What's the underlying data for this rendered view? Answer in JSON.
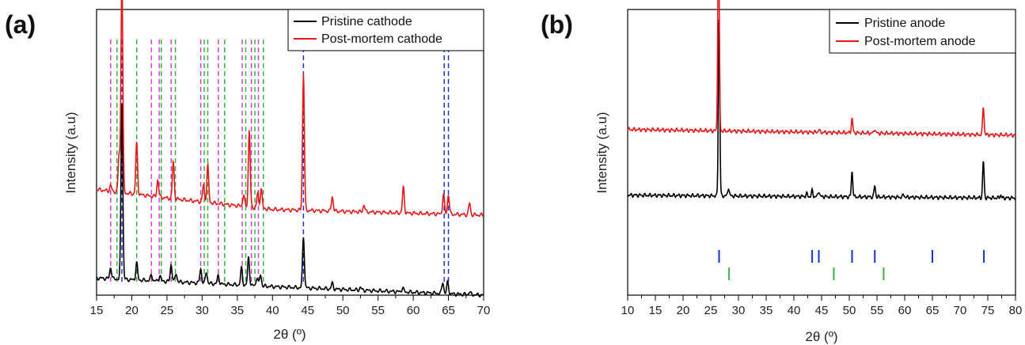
{
  "chart_data": [
    {
      "panel_label": "(a)",
      "type": "line",
      "xlabel": "2θ (º)",
      "ylabel": "Intensity (a.u)",
      "xlim": [
        15,
        70
      ],
      "x_ticks": [
        15,
        20,
        25,
        30,
        35,
        40,
        45,
        50,
        55,
        60,
        65,
        70
      ],
      "legend": {
        "position": "top-right"
      },
      "series": [
        {
          "name": "Pristine cathode",
          "color": "#000000",
          "baseline": [
            [
              15,
              0.06
            ],
            [
              40,
              0.03
            ],
            [
              70,
              0.0
            ]
          ],
          "peaks": [
            [
              17.0,
              0.04
            ],
            [
              18.6,
              0.62
            ],
            [
              20.7,
              0.06
            ],
            [
              22.8,
              0.02
            ],
            [
              24.0,
              0.02
            ],
            [
              25.6,
              0.06
            ],
            [
              26.3,
              0.03
            ],
            [
              29.8,
              0.05
            ],
            [
              30.6,
              0.04
            ],
            [
              32.3,
              0.03
            ],
            [
              35.6,
              0.06
            ],
            [
              36.6,
              0.1
            ],
            [
              37.8,
              0.03
            ],
            [
              38.3,
              0.04
            ],
            [
              44.4,
              0.18
            ],
            [
              48.5,
              0.02
            ],
            [
              52.5,
              0.01
            ],
            [
              58.5,
              0.015
            ],
            [
              64.2,
              0.04
            ],
            [
              64.9,
              0.04
            ],
            [
              68.0,
              0.01
            ]
          ]
        },
        {
          "name": "Post-mortem cathode",
          "color": "#e31a1c",
          "baseline": [
            [
              15,
              0.37
            ],
            [
              25,
              0.34
            ],
            [
              40,
              0.3
            ],
            [
              55,
              0.29
            ],
            [
              70,
              0.28
            ]
          ],
          "peaks": [
            [
              17.0,
              0.02
            ],
            [
              18.2,
              0.13
            ],
            [
              18.6,
              0.76
            ],
            [
              20.7,
              0.18
            ],
            [
              23.7,
              0.06
            ],
            [
              25.9,
              0.13
            ],
            [
              30.2,
              0.06
            ],
            [
              30.8,
              0.13
            ],
            [
              35.9,
              0.04
            ],
            [
              36.7,
              0.27
            ],
            [
              37.9,
              0.05
            ],
            [
              38.4,
              0.07
            ],
            [
              44.4,
              0.48
            ],
            [
              48.5,
              0.05
            ],
            [
              53.0,
              0.025
            ],
            [
              58.6,
              0.09
            ],
            [
              64.3,
              0.07
            ],
            [
              65.0,
              0.07
            ],
            [
              68.0,
              0.04
            ]
          ]
        }
      ],
      "reference_lines": [
        {
          "color": "#d63fd6",
          "positions": [
            17.0,
            22.8,
            23.9,
            25.6,
            29.8,
            32.3,
            35.7,
            37.0,
            38.0
          ]
        },
        {
          "color": "#3cb043",
          "positions": [
            17.9,
            20.7,
            24.2,
            26.2,
            30.3,
            30.8,
            33.2,
            36.2,
            37.5,
            38.7
          ]
        },
        {
          "color": "#1f2fd0",
          "positions": [
            18.6,
            44.4,
            64.4,
            65.0
          ]
        }
      ]
    },
    {
      "panel_label": "(b)",
      "type": "line",
      "xlabel": "2θ (º)",
      "ylabel": "Intensity (a.u)",
      "xlim": [
        10,
        80
      ],
      "x_ticks": [
        10,
        15,
        20,
        25,
        30,
        35,
        40,
        45,
        50,
        55,
        60,
        65,
        70,
        75,
        80
      ],
      "legend": {
        "position": "top-right"
      },
      "series": [
        {
          "name": "Pristine anode",
          "color": "#000000",
          "baseline": [
            [
              10,
              0.35
            ],
            [
              80,
              0.34
            ]
          ],
          "peaks": [
            [
              26.5,
              0.62
            ],
            [
              28.2,
              0.03
            ],
            [
              42.3,
              0.01
            ],
            [
              43.3,
              0.02
            ],
            [
              44.5,
              0.02
            ],
            [
              50.5,
              0.09
            ],
            [
              54.6,
              0.04
            ],
            [
              59.8,
              0.01
            ],
            [
              74.2,
              0.13
            ],
            [
              77.3,
              0.01
            ]
          ]
        },
        {
          "name": "Post-mortem anode",
          "color": "#e31a1c",
          "baseline": [
            [
              10,
              0.58
            ],
            [
              80,
              0.56
            ]
          ],
          "peaks": [
            [
              26.4,
              0.76
            ],
            [
              44.5,
              0.01
            ],
            [
              50.5,
              0.05
            ],
            [
              54.6,
              0.015
            ],
            [
              74.2,
              0.1
            ]
          ]
        }
      ],
      "reference_ticks": [
        {
          "color": "#1f2fd0",
          "positions": [
            26.5,
            43.3,
            44.5,
            50.5,
            54.6,
            65.0,
            74.3
          ]
        },
        {
          "color": "#3cb043",
          "positions": [
            28.3,
            47.2,
            56.2
          ]
        }
      ]
    }
  ]
}
